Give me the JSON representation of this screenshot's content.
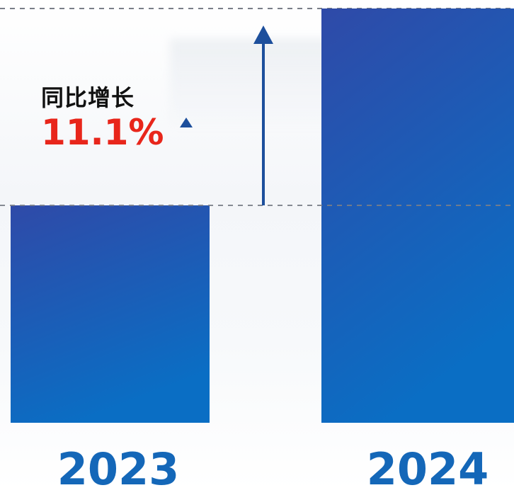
{
  "chart_data": {
    "type": "bar",
    "categories": [
      "2023",
      "2024"
    ],
    "values": [
      100,
      111.1
    ],
    "annotation": {
      "label": "同比增长",
      "value": "11.1%",
      "direction": "up"
    },
    "title": "",
    "xlabel": "",
    "ylabel": "",
    "grid": false,
    "legend": "none"
  },
  "colors": {
    "bar_top": "#2f4aa8",
    "bar_bottom": "#0a6ec4",
    "arrow": "#1d4f9c",
    "growth_value": "#e8261b",
    "category_label": "#1467b8",
    "dash_line": "#7a7f88"
  }
}
